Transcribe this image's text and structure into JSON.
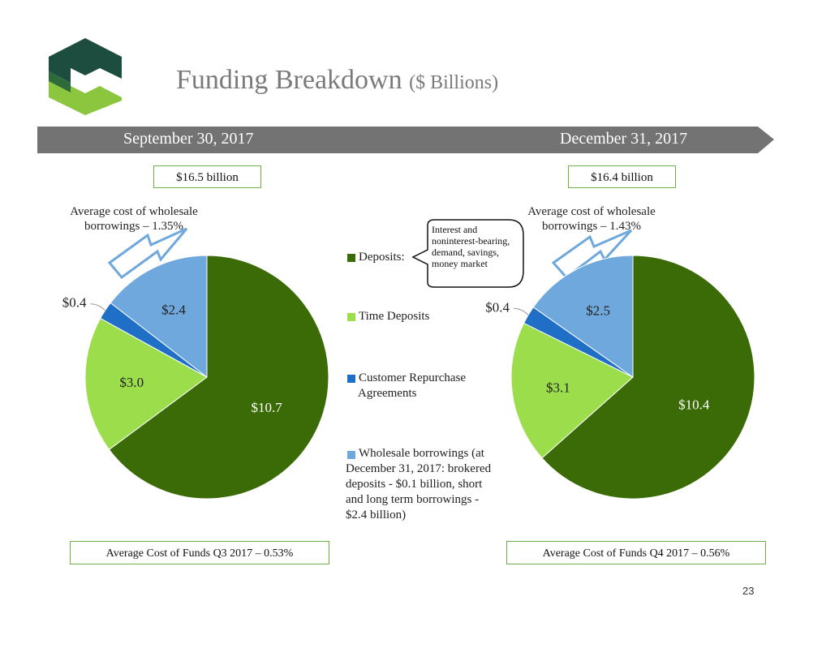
{
  "title": "Funding Breakdown",
  "title_sub": "($ Billions)",
  "banner": {
    "left": "September 30, 2017",
    "right": "December 31, 2017"
  },
  "colors": {
    "deposits": "#3a6b07",
    "time_deposits": "#9bdd4a",
    "repurchase": "#1f6fc6",
    "wholesale": "#6fa8dc",
    "banner": "#737373",
    "box_border": "#70ad47",
    "logo_dark": "#1d4d3e",
    "logo_light": "#8cc63f"
  },
  "legend": [
    {
      "label": "Deposits:",
      "color": "#3a6b07"
    },
    {
      "label": "Time Deposits",
      "color": "#9bdd4a"
    },
    {
      "label": "Customer Repurchase Agreements",
      "color": "#1f6fc6"
    },
    {
      "label": "Wholesale borrowings (at December 31, 2017: brokered deposits - $0.1 billion, short and long term borrowings - $2.4 billion)",
      "color": "#6fa8dc"
    }
  ],
  "callout": "Interest and noninterest-bearing, demand, savings, money market",
  "chart_data": [
    {
      "type": "pie",
      "title": "September 30, 2017",
      "total_label": "$16.5 billion",
      "avg_wholesale_label": "Average cost of wholesale borrowings – 1.35%",
      "cost_of_funds_label": "Average Cost of Funds Q3 2017 – 0.53%",
      "slices": [
        {
          "name": "Deposits",
          "value": 10.7,
          "label": "$10.7"
        },
        {
          "name": "Time Deposits",
          "value": 3.0,
          "label": "$3.0"
        },
        {
          "name": "Customer Repurchase Agreements",
          "value": 0.4,
          "label": "$0.4"
        },
        {
          "name": "Wholesale borrowings",
          "value": 2.4,
          "label": "$2.4"
        }
      ]
    },
    {
      "type": "pie",
      "title": "December 31, 2017",
      "total_label": "$16.4 billion",
      "avg_wholesale_label": "Average cost of wholesale borrowings – 1.43%",
      "cost_of_funds_label": "Average Cost of Funds Q4 2017 – 0.56%",
      "slices": [
        {
          "name": "Deposits",
          "value": 10.4,
          "label": "$10.4"
        },
        {
          "name": "Time Deposits",
          "value": 3.1,
          "label": "$3.1"
        },
        {
          "name": "Customer Repurchase Agreements",
          "value": 0.4,
          "label": "$0.4"
        },
        {
          "name": "Wholesale borrowings",
          "value": 2.5,
          "label": "$2.5"
        }
      ]
    }
  ],
  "page_number": "23"
}
